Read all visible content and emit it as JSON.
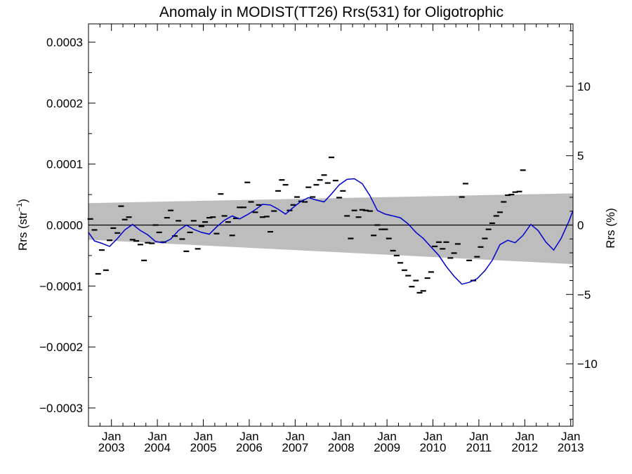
{
  "chart_data": {
    "type": "scatter",
    "title": "Anomaly in MODIST(TT26) Rrs(531) for Oligotrophic",
    "ylabel_left_base": "Rrs (str",
    "ylabel_left_sup": "−1",
    "ylabel_left_close": ")",
    "ylabel_right": "Rrs (%)",
    "xlim": [
      2002.5,
      2013.05
    ],
    "ylim_left": [
      -0.00033,
      0.00033
    ],
    "ylim_right": [
      -14.5,
      14.5
    ],
    "left_ticks": [
      {
        "v": 0.0003,
        "label": "0.0003"
      },
      {
        "v": 0.0002,
        "label": "0.0002"
      },
      {
        "v": 0.0001,
        "label": "0.0001"
      },
      {
        "v": 0.0,
        "label": "0.0000"
      },
      {
        "v": -0.0001,
        "label": "−0.0001"
      },
      {
        "v": -0.0002,
        "label": "−0.0002"
      },
      {
        "v": -0.0003,
        "label": "−0.0003"
      }
    ],
    "right_ticks": [
      {
        "v": 10,
        "label": "10"
      },
      {
        "v": 5,
        "label": "5"
      },
      {
        "v": 0,
        "label": "0"
      },
      {
        "v": -5,
        "label": "−5"
      },
      {
        "v": -10,
        "label": "−10"
      }
    ],
    "x_ticks": [
      {
        "v": 2003,
        "month": "Jan",
        "year": "2003"
      },
      {
        "v": 2004,
        "month": "Jan",
        "year": "2004"
      },
      {
        "v": 2005,
        "month": "Jan",
        "year": "2005"
      },
      {
        "v": 2006,
        "month": "Jan",
        "year": "2006"
      },
      {
        "v": 2007,
        "month": "Jan",
        "year": "2007"
      },
      {
        "v": 2008,
        "month": "Jan",
        "year": "2008"
      },
      {
        "v": 2009,
        "month": "Jan",
        "year": "2009"
      },
      {
        "v": 2010,
        "month": "Jan",
        "year": "2010"
      },
      {
        "v": 2011,
        "month": "Jan",
        "year": "2011"
      },
      {
        "v": 2012,
        "month": "Jan",
        "year": "2012"
      },
      {
        "v": 2013,
        "month": "Jan",
        "year": "2013"
      }
    ],
    "trend_band": {
      "x": [
        2002.5,
        2013.05
      ],
      "upper": [
        3.6e-05,
        5.2e-05
      ],
      "lower": [
        -2.4e-05,
        -6.4e-05
      ]
    },
    "zero_line": 0,
    "monthly_anomalies": [
      {
        "x": 2002.54,
        "y": 1e-05
      },
      {
        "x": 2002.63,
        "y": -8e-06
      },
      {
        "x": 2002.71,
        "y": -8e-05
      },
      {
        "x": 2002.79,
        "y": -4.1e-05
      },
      {
        "x": 2002.88,
        "y": -7.4e-05
      },
      {
        "x": 2002.96,
        "y": -2.5e-05
      },
      {
        "x": 2003.04,
        "y": -5e-06
      },
      {
        "x": 2003.13,
        "y": -1.3e-05
      },
      {
        "x": 2003.21,
        "y": 3.1e-05
      },
      {
        "x": 2003.29,
        "y": 9e-06
      },
      {
        "x": 2003.38,
        "y": 1.3e-05
      },
      {
        "x": 2003.46,
        "y": -2.4e-05
      },
      {
        "x": 2003.54,
        "y": -2.6e-05
      },
      {
        "x": 2003.63,
        "y": -3.2e-05
      },
      {
        "x": 2003.71,
        "y": -5.8e-05
      },
      {
        "x": 2003.79,
        "y": -2.9e-05
      },
      {
        "x": 2003.88,
        "y": -3e-05
      },
      {
        "x": 2003.96,
        "y": 0.0
      },
      {
        "x": 2004.04,
        "y": -1.2e-05
      },
      {
        "x": 2004.13,
        "y": -2.8e-05
      },
      {
        "x": 2004.21,
        "y": 1.2e-05
      },
      {
        "x": 2004.29,
        "y": 2.4e-05
      },
      {
        "x": 2004.38,
        "y": -1.8e-05
      },
      {
        "x": 2004.46,
        "y": 7e-06
      },
      {
        "x": 2004.54,
        "y": -2.3e-05
      },
      {
        "x": 2004.63,
        "y": -4.3e-05
      },
      {
        "x": 2004.71,
        "y": -1.2e-05
      },
      {
        "x": 2004.79,
        "y": 7e-06
      },
      {
        "x": 2004.88,
        "y": -3.9e-05
      },
      {
        "x": 2004.96,
        "y": -2e-06
      },
      {
        "x": 2005.04,
        "y": 5e-06
      },
      {
        "x": 2005.13,
        "y": 1.2e-05
      },
      {
        "x": 2005.21,
        "y": 1.3e-05
      },
      {
        "x": 2005.29,
        "y": -1.4e-05
      },
      {
        "x": 2005.38,
        "y": 5.1e-05
      },
      {
        "x": 2005.46,
        "y": 1.5e-05
      },
      {
        "x": 2005.54,
        "y": 5e-06
      },
      {
        "x": 2005.63,
        "y": -1.7e-05
      },
      {
        "x": 2005.71,
        "y": 1.1e-05
      },
      {
        "x": 2005.79,
        "y": 2.9e-05
      },
      {
        "x": 2005.88,
        "y": 2.9e-05
      },
      {
        "x": 2005.96,
        "y": 7e-05
      },
      {
        "x": 2006.04,
        "y": 3.8e-05
      },
      {
        "x": 2006.13,
        "y": 2.1e-05
      },
      {
        "x": 2006.21,
        "y": 3.3e-05
      },
      {
        "x": 2006.29,
        "y": 1.3e-05
      },
      {
        "x": 2006.38,
        "y": 1.4e-05
      },
      {
        "x": 2006.46,
        "y": -1.1e-05
      },
      {
        "x": 2006.54,
        "y": 2.3e-05
      },
      {
        "x": 2006.63,
        "y": 5.6e-05
      },
      {
        "x": 2006.71,
        "y": 7.4e-05
      },
      {
        "x": 2006.79,
        "y": 6.6e-05
      },
      {
        "x": 2006.88,
        "y": 2.4e-05
      },
      {
        "x": 2006.96,
        "y": 3.3e-05
      },
      {
        "x": 2007.04,
        "y": 4.6e-05
      },
      {
        "x": 2007.13,
        "y": 3.9e-05
      },
      {
        "x": 2007.21,
        "y": 3.8e-05
      },
      {
        "x": 2007.29,
        "y": 6.2e-05
      },
      {
        "x": 2007.38,
        "y": 4.6e-05
      },
      {
        "x": 2007.46,
        "y": 6.6e-05
      },
      {
        "x": 2007.54,
        "y": 7.4e-05
      },
      {
        "x": 2007.63,
        "y": 8.2e-05
      },
      {
        "x": 2007.71,
        "y": 6.9e-05
      },
      {
        "x": 2007.79,
        "y": 0.000111
      },
      {
        "x": 2007.88,
        "y": 7.3e-05
      },
      {
        "x": 2007.96,
        "y": 4.5e-05
      },
      {
        "x": 2008.04,
        "y": 5.6e-05
      },
      {
        "x": 2008.13,
        "y": 1.5e-05
      },
      {
        "x": 2008.21,
        "y": -2.2e-05
      },
      {
        "x": 2008.29,
        "y": 2.4e-05
      },
      {
        "x": 2008.38,
        "y": 1.3e-05
      },
      {
        "x": 2008.46,
        "y": 2.5e-05
      },
      {
        "x": 2008.54,
        "y": 2.4e-05
      },
      {
        "x": 2008.63,
        "y": 2.3e-05
      },
      {
        "x": 2008.71,
        "y": -1.7e-05
      },
      {
        "x": 2008.79,
        "y": 0.0
      },
      {
        "x": 2008.88,
        "y": -7e-06
      },
      {
        "x": 2008.96,
        "y": -7e-06
      },
      {
        "x": 2009.04,
        "y": -2.2e-05
      },
      {
        "x": 2009.13,
        "y": -4.2e-05
      },
      {
        "x": 2009.21,
        "y": -5e-05
      },
      {
        "x": 2009.29,
        "y": -6.2e-05
      },
      {
        "x": 2009.38,
        "y": -7.4e-05
      },
      {
        "x": 2009.46,
        "y": -8.3e-05
      },
      {
        "x": 2009.54,
        "y": -0.000101
      },
      {
        "x": 2009.63,
        "y": -9.1e-05
      },
      {
        "x": 2009.71,
        "y": -0.000111
      },
      {
        "x": 2009.79,
        "y": -0.000108
      },
      {
        "x": 2009.88,
        "y": -8.7e-05
      },
      {
        "x": 2009.96,
        "y": -7.7e-05
      },
      {
        "x": 2010.04,
        "y": -3.5e-05
      },
      {
        "x": 2010.13,
        "y": -2.8e-05
      },
      {
        "x": 2010.21,
        "y": -3.9e-05
      },
      {
        "x": 2010.29,
        "y": -2.8e-05
      },
      {
        "x": 2010.38,
        "y": -5.4e-05
      },
      {
        "x": 2010.46,
        "y": -4.6e-05
      },
      {
        "x": 2010.54,
        "y": -3.1e-05
      },
      {
        "x": 2010.63,
        "y": 4.6e-05
      },
      {
        "x": 2010.71,
        "y": 6.8e-05
      },
      {
        "x": 2010.79,
        "y": -5.8e-05
      },
      {
        "x": 2010.88,
        "y": -9.1e-05
      },
      {
        "x": 2010.96,
        "y": -5.2e-05
      },
      {
        "x": 2011.04,
        "y": -3.6e-05
      },
      {
        "x": 2011.13,
        "y": -2.2e-05
      },
      {
        "x": 2011.21,
        "y": -7e-06
      },
      {
        "x": 2011.29,
        "y": 3e-06
      },
      {
        "x": 2011.38,
        "y": 1.5e-05
      },
      {
        "x": 2011.46,
        "y": 2.1e-05
      },
      {
        "x": 2011.54,
        "y": 3.8e-05
      },
      {
        "x": 2011.63,
        "y": 4.9e-05
      },
      {
        "x": 2011.71,
        "y": 5e-05
      },
      {
        "x": 2011.79,
        "y": 5.4e-05
      },
      {
        "x": 2011.88,
        "y": 5.5e-05
      },
      {
        "x": 2011.96,
        "y": 9e-05
      }
    ],
    "smoothed_anomaly": {
      "color": "#0000cc",
      "x": [
        2002.5,
        2002.63,
        2002.79,
        2002.96,
        2003.13,
        2003.29,
        2003.46,
        2003.63,
        2003.79,
        2003.96,
        2004.13,
        2004.29,
        2004.46,
        2004.63,
        2004.79,
        2004.96,
        2005.13,
        2005.29,
        2005.46,
        2005.63,
        2005.79,
        2005.96,
        2006.13,
        2006.29,
        2006.46,
        2006.63,
        2006.79,
        2006.96,
        2007.13,
        2007.29,
        2007.46,
        2007.63,
        2007.79,
        2007.96,
        2008.13,
        2008.29,
        2008.46,
        2008.63,
        2008.79,
        2008.96,
        2009.13,
        2009.29,
        2009.46,
        2009.63,
        2009.79,
        2009.96,
        2010.13,
        2010.29,
        2010.46,
        2010.63,
        2010.79,
        2010.96,
        2011.13,
        2011.29,
        2011.46,
        2011.63,
        2011.79,
        2011.96,
        2012.13,
        2012.29,
        2012.46,
        2012.63,
        2012.79,
        2012.96,
        2013.05
      ],
      "y": [
        -1.2e-05,
        -2.6e-05,
        -3e-05,
        -3.5e-05,
        -2.2e-05,
        -8e-06,
        1e-06,
        -9e-06,
        -1.6e-05,
        -2.7e-05,
        -2.9e-05,
        -2.3e-05,
        -9e-06,
        0.0,
        -7e-06,
        -1.2e-05,
        -1.5e-05,
        -3e-06,
        8e-06,
        1.5e-05,
        1e-05,
        1.7e-05,
        2.5e-05,
        3.4e-05,
        3.3e-05,
        2.6e-05,
        1.8e-05,
        2.9e-05,
        3.9e-05,
        4.5e-05,
        4.1e-05,
        3.8e-05,
        5.1e-05,
        6.6e-05,
        7.5e-05,
        7.6e-05,
        6.8e-05,
        4.8e-05,
        2.4e-05,
        1.8e-05,
        1.5e-05,
        1.2e-05,
        2e-06,
        -1.2e-05,
        -2.2e-05,
        -3.6e-05,
        -5e-05,
        -6.8e-05,
        -8.4e-05,
        -9.7e-05,
        -9.4e-05,
        -8.8e-05,
        -7.5e-05,
        -5.8e-05,
        -3.2e-05,
        -2.5e-05,
        -2.9e-05,
        -1.7e-05,
        1e-06,
        -9e-06,
        -2.8e-05,
        -4.1e-05,
        -2.2e-05,
        6e-06,
        2.4e-05
      ]
    }
  }
}
